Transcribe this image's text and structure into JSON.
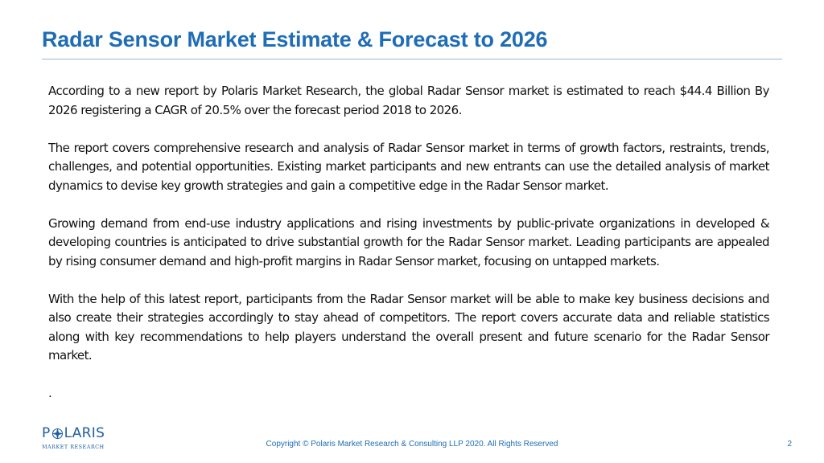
{
  "slide": {
    "title": "Radar Sensor Market Estimate & Forecast to 2026",
    "paragraphs": [
      "According to a new report by Polaris Market Research, the global Radar Sensor market is estimated to reach $44.4 Billion By 2026 registering a CAGR of 20.5% over the forecast period 2018 to 2026.",
      "The report covers comprehensive research and analysis of Radar Sensor market in terms of growth factors, restraints, trends, challenges, and potential opportunities. Existing market participants and new entrants can use the detailed analysis of market dynamics to devise key growth strategies and gain a competitive edge in the Radar Sensor market.",
      "Growing demand from end-use industry applications and rising investments by public-private organizations in developed & developing countries is anticipated to drive substantial growth for the Radar Sensor market. Leading participants are appealed by rising consumer demand and high-profit margins in Radar Sensor market, focusing on untapped markets.",
      "With the help of this latest report, participants from the Radar Sensor market will be able to make key business decisions and also create their strategies accordingly to stay ahead of competitors. The report covers accurate data and reliable statistics along with key recommendations to help players understand the overall present and future scenario for the Radar Sensor market."
    ],
    "trailing_mark": "."
  },
  "logo": {
    "letter_p": "P",
    "letters_rest": "LARIS",
    "subtitle": "MARKET RESEARCH",
    "icon": "compass-star-icon"
  },
  "footer": {
    "copyright": "Copyright © Polaris Market Research & Consulting LLP 2020. All Rights Reserved",
    "page_number": "2"
  },
  "colors": {
    "title": "#1f6db5",
    "rule": "#9bb8d3",
    "logo": "#1f5fa0",
    "body_text": "#111111"
  }
}
